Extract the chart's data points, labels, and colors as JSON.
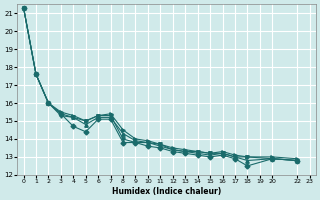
{
  "xlabel": "Humidex (Indice chaleur)",
  "ylabel": "",
  "background_color": "#d0eaea",
  "grid_color": "#ffffff",
  "line_color": "#1a6b6b",
  "xlim": [
    -0.5,
    23.5
  ],
  "ylim": [
    12,
    21.5
  ],
  "yticks": [
    12,
    13,
    14,
    15,
    16,
    17,
    18,
    19,
    20,
    21
  ],
  "xticks": [
    0,
    1,
    2,
    3,
    4,
    5,
    6,
    7,
    8,
    9,
    10,
    11,
    12,
    13,
    14,
    15,
    16,
    17,
    18,
    19,
    20,
    22,
    23
  ],
  "xtick_labels": [
    "0",
    "1",
    "2",
    "3",
    "4",
    "5",
    "6",
    "7",
    "8",
    "9",
    "10",
    "11",
    "12",
    "13",
    "14",
    "15",
    "16",
    "17",
    "18",
    "19",
    "20",
    "22",
    "23"
  ],
  "series": [
    [
      21.3,
      17.6,
      16.0,
      15.4,
      14.7,
      14.4,
      15.1,
      15.1,
      13.8,
      13.8,
      13.6,
      13.5,
      13.3,
      13.2,
      13.1,
      13.0,
      13.1,
      12.9,
      12.5,
      12.9,
      12.8
    ],
    [
      21.3,
      17.6,
      16.0,
      15.3,
      15.2,
      15.0,
      15.3,
      15.3,
      14.0,
      13.8,
      13.8,
      13.7,
      13.4,
      13.3,
      13.3,
      13.2,
      13.2,
      13.0,
      13.0,
      12.9,
      12.8
    ],
    [
      21.3,
      17.6,
      16.0,
      15.4,
      15.2,
      14.8,
      15.2,
      15.2,
      14.3,
      13.9,
      13.8,
      13.6,
      13.4,
      13.3,
      13.2,
      13.1,
      13.2,
      13.0,
      12.8,
      12.9,
      12.8
    ],
    [
      21.3,
      17.6,
      16.0,
      15.5,
      15.3,
      15.0,
      15.3,
      15.4,
      14.5,
      14.0,
      13.9,
      13.7,
      13.5,
      13.4,
      13.3,
      13.2,
      13.3,
      13.1,
      13.0,
      13.0,
      12.9
    ]
  ],
  "series_x": [
    0,
    1,
    2,
    3,
    4,
    5,
    6,
    7,
    8,
    9,
    10,
    11,
    12,
    13,
    14,
    15,
    16,
    17,
    18,
    20,
    22
  ]
}
